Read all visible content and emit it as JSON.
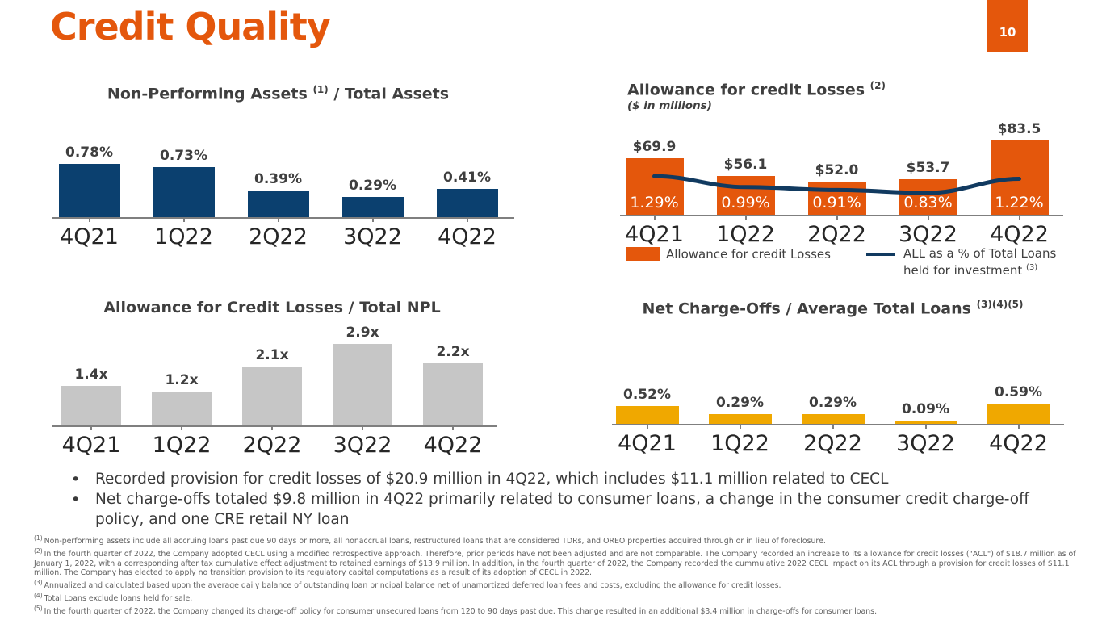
{
  "page": {
    "title": "Credit Quality",
    "page_number": "10"
  },
  "colors": {
    "accent_orange": "#E4570C",
    "navy_bar": "#0B406F",
    "navy_line": "#113A60",
    "gray_bar": "#C6C6C6",
    "gold_bar": "#F0A800",
    "axis_gray": "#7F7F7F",
    "label_text": "#3F3F3F"
  },
  "chart_data": [
    {
      "id": "npa-total-assets",
      "type": "bar",
      "title": {
        "text": "Non-Performing Assets ",
        "sup": "(1)",
        "after": " / Total Assets"
      },
      "categories": [
        "4Q21",
        "1Q22",
        "2Q22",
        "3Q22",
        "4Q22"
      ],
      "values": [
        0.78,
        0.73,
        0.39,
        0.29,
        0.41
      ],
      "labels": [
        "0.78%",
        "0.73%",
        "0.39%",
        "0.29%",
        "0.41%"
      ],
      "color_key": "navy_bar",
      "ylabel": "",
      "xlabel": "",
      "ylim": [
        0,
        1.0
      ],
      "grid": false
    },
    {
      "id": "allowance-credit-losses",
      "type": "bar+line",
      "title": {
        "text": "Allowance for credit Losses ",
        "sup": "(2)",
        "after": ""
      },
      "subtitle": "($ in millions)",
      "categories": [
        "4Q21",
        "1Q22",
        "2Q22",
        "3Q22",
        "4Q22"
      ],
      "series": [
        {
          "name": "Allowance for credit Losses",
          "type": "bar",
          "values": [
            69.9,
            56.1,
            52.0,
            53.7,
            83.5
          ],
          "labels": [
            "$69.9",
            "$56.1",
            "$52.0",
            "$53.7",
            "$83.5"
          ]
        },
        {
          "name": "ALL as a % of Total Loans held for investment (3)",
          "type": "line",
          "values": [
            1.29,
            0.99,
            0.91,
            0.83,
            1.22
          ],
          "labels": [
            "1.29%",
            "0.99%",
            "0.91%",
            "0.83%",
            "1.22%"
          ]
        }
      ],
      "color_key": "navy_bar_unused",
      "bar_color_key": "accent_orange",
      "line_color_key": "navy_line",
      "ylim": [
        25,
        90
      ],
      "line_ylim": [
        0.2,
        2.4
      ],
      "legend_position": "bottom",
      "grid": false
    },
    {
      "id": "acl-total-npl",
      "type": "bar",
      "title": {
        "text": "Allowance for Credit Losses / Total NPL",
        "sup": "",
        "after": ""
      },
      "categories": [
        "4Q21",
        "1Q22",
        "2Q22",
        "3Q22",
        "4Q22"
      ],
      "values": [
        1.4,
        1.2,
        2.1,
        2.9,
        2.2
      ],
      "labels": [
        "1.4x",
        "1.2x",
        "2.1x",
        "2.9x",
        "2.2x"
      ],
      "color_key": "gray_bar",
      "ylim": [
        0,
        3.0
      ],
      "grid": false
    },
    {
      "id": "nco-avg-total-loans",
      "type": "bar",
      "title": {
        "text": "Net Charge-Offs / Average Total Loans ",
        "sup": "(3)(4)(5)",
        "after": ""
      },
      "categories": [
        "4Q21",
        "1Q22",
        "2Q22",
        "3Q22",
        "4Q22"
      ],
      "values": [
        0.52,
        0.29,
        0.29,
        0.09,
        0.59
      ],
      "labels": [
        "0.52%",
        "0.29%",
        "0.29%",
        "0.09%",
        "0.59%"
      ],
      "color_key": "gold_bar",
      "ylim": [
        0,
        0.6
      ],
      "grid": false
    }
  ],
  "legend": {
    "bar_label": "Allowance for credit Losses",
    "line_label_1": "ALL as a % of Total Loans",
    "line_label_2": "held for investment ",
    "line_label_sup": "(3)"
  },
  "bullets": [
    "Recorded provision for credit losses of $20.9 million in 4Q22, which includes $11.1 million related to CECL",
    "Net charge-offs totaled $9.8 million in 4Q22 primarily related to consumer loans, a change in the consumer credit charge-off policy, and one CRE retail NY loan"
  ],
  "footnotes": [
    {
      "sup": "(1)",
      "text": "Non-performing assets include all accruing loans past due 90 days or more, all nonaccrual loans, restructured loans that are considered TDRs, and OREO properties acquired through or in lieu of foreclosure."
    },
    {
      "sup": "(2)",
      "text": "In the fourth quarter of 2022, the Company adopted CECL using a modified retrospective approach. Therefore, prior periods have not been adjusted and are not comparable. The Company recorded an increase to its allowance for credit losses (\"ACL\") of $18.7 million as of January 1, 2022, with a corresponding after tax cumulative effect adjustment to retained earnings of $13.9 million. In addition, in the fourth quarter of 2022, the Company recorded the cummulative 2022 CECL impact on its ACL through a provision for credit losses of $11.1 million. The Company has elected to apply no transition provision to its regulatory capital computations as a result of its adoption of CECL in 2022."
    },
    {
      "sup": "(3)",
      "text": "Annualized and calculated based upon the average daily balance of outstanding loan principal balance net of unamortized deferred loan fees and costs, excluding the allowance for credit losses."
    },
    {
      "sup": "(4)",
      "text": "Total Loans exclude loans held for sale."
    },
    {
      "sup": "(5)",
      "text": "In the fourth quarter of 2022, the Company changed its charge-off policy for consumer unsecured loans from 120 to 90 days past due. This change resulted in an additional $3.4 million in charge-offs for consumer loans."
    }
  ]
}
